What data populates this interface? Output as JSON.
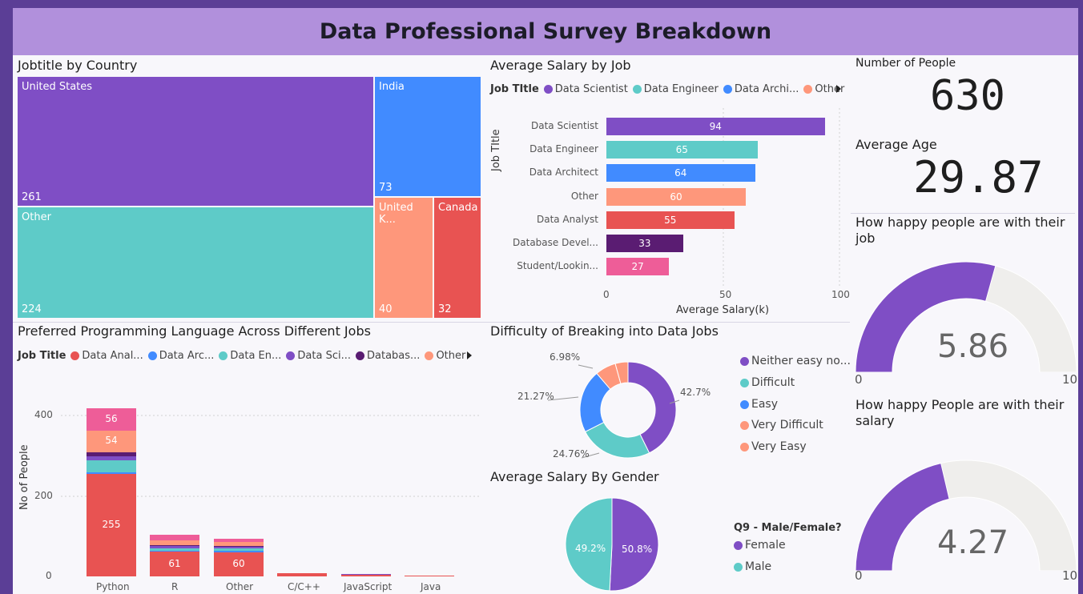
{
  "header": {
    "title": "Data Professional Survey Breakdown"
  },
  "treemap": {
    "title": "Jobtitle by Country",
    "cells": [
      {
        "name": "United States",
        "value": "261",
        "color": "#7f4ec5"
      },
      {
        "name": "India",
        "value": "73",
        "color": "#418bff"
      },
      {
        "name": "Other",
        "value": "224",
        "color": "#5ecbc8"
      },
      {
        "name": "United K...",
        "value": "40",
        "color": "#fe977b"
      },
      {
        "name": "Canada",
        "value": "32",
        "color": "#e85352"
      }
    ]
  },
  "salary_by_job": {
    "title": "Average Salary by Job",
    "legend_title": "Job TItle",
    "legend": [
      {
        "label": "Data Scientist",
        "color": "#7f4ec5"
      },
      {
        "label": "Data Engineer",
        "color": "#5ecbc8"
      },
      {
        "label": "Data Archi...",
        "color": "#418bff"
      },
      {
        "label": "Other",
        "color": "#fe977b"
      }
    ],
    "y_axis_title": "Job TItle",
    "x_axis_title": "Average Salary(k)",
    "x_ticks": [
      "0",
      "50",
      "100"
    ],
    "bars": [
      {
        "label": "Data Scientist",
        "value": "94",
        "color": "#7f4ec5"
      },
      {
        "label": "Data Engineer",
        "value": "65",
        "color": "#5ecbc8"
      },
      {
        "label": "Data Architect",
        "value": "64",
        "color": "#418bff"
      },
      {
        "label": "Other",
        "value": "60",
        "color": "#fe977b"
      },
      {
        "label": "Data Analyst",
        "value": "55",
        "color": "#e85352"
      },
      {
        "label": "Database Devel...",
        "value": "33",
        "color": "#5a1c72"
      },
      {
        "label": "Student/Lookin...",
        "value": "27",
        "color": "#ee5d98"
      }
    ]
  },
  "kpi": {
    "people_label": "Number of People",
    "people_value": "630",
    "age_label": "Average Age",
    "age_value": "29.87"
  },
  "gauge_job": {
    "title": "How happy people are with their job",
    "value": "5.86",
    "min": "0",
    "max": "10"
  },
  "gauge_salary": {
    "title": "How happy People are with their salary",
    "value": "4.27",
    "min": "0",
    "max": "10"
  },
  "languages": {
    "title": "Preferred Programming Language Across Different Jobs",
    "legend_title": "Job Title",
    "legend": [
      {
        "label": "Data Anal...",
        "color": "#e85352"
      },
      {
        "label": "Data Arc...",
        "color": "#418bff"
      },
      {
        "label": "Data En...",
        "color": "#5ecbc8"
      },
      {
        "label": "Data Sci...",
        "color": "#7f4ec5"
      },
      {
        "label": "Databas...",
        "color": "#5a1c72"
      },
      {
        "label": "Other",
        "color": "#fe977b"
      }
    ],
    "y_axis_title": "No of People",
    "y_ticks": [
      "400",
      "200",
      "0"
    ],
    "categories": [
      "Python",
      "R",
      "Other",
      "C/C++",
      "JavaScript",
      "Java"
    ],
    "python_labels": [
      "56",
      "54",
      "255"
    ],
    "r_label": "61",
    "other_label": "60"
  },
  "difficulty": {
    "title": "Difficulty of Breaking into Data Jobs",
    "slices": [
      {
        "label": "Neither easy no...",
        "pct": "42.7%",
        "color": "#7f4ec5"
      },
      {
        "label": "Difficult",
        "pct": "24.76%",
        "color": "#5ecbc8"
      },
      {
        "label": "Easy",
        "pct": "21.27%",
        "color": "#418bff"
      },
      {
        "label": "Very Difficult",
        "pct": "6.98%",
        "color": "#fe977b"
      },
      {
        "label": "Very Easy",
        "pct": "",
        "color": "#fe977b"
      }
    ]
  },
  "gender": {
    "title": "Average Salary By Gender",
    "legend_title": "Q9 - Male/Female?",
    "slices": [
      {
        "label": "Female",
        "pct": "50.8%",
        "color": "#7f4ec5"
      },
      {
        "label": "Male",
        "pct": "49.2%",
        "color": "#5ecbc8"
      }
    ]
  },
  "chart_data": [
    {
      "type": "treemap",
      "title": "Jobtitle by Country",
      "categories": [
        "United States",
        "India",
        "Other",
        "United K...",
        "Canada"
      ],
      "values": [
        261,
        73,
        224,
        40,
        32
      ]
    },
    {
      "type": "bar",
      "title": "Average Salary by Job",
      "categories": [
        "Data Scientist",
        "Data Engineer",
        "Data Architect",
        "Other",
        "Data Analyst",
        "Database Devel...",
        "Student/Lookin..."
      ],
      "values": [
        94,
        65,
        64,
        60,
        55,
        33,
        27
      ],
      "xlabel": "Average Salary(k)",
      "ylabel": "Job TItle",
      "xlim": [
        0,
        100
      ]
    },
    {
      "type": "bar",
      "title": "Preferred Programming Language Across Different Jobs",
      "categories": [
        "Python",
        "R",
        "Other",
        "C/C++",
        "JavaScript",
        "Java"
      ],
      "ylabel": "No of People",
      "ylim": [
        0,
        420
      ],
      "series": [
        {
          "name": "Data Anal...",
          "values": [
            255,
            61,
            60,
            8,
            4,
            2
          ]
        },
        {
          "name": "Data Arc...",
          "values": [
            3,
            3,
            3,
            0,
            0,
            0
          ]
        },
        {
          "name": "Data En...",
          "values": [
            30,
            6,
            6,
            0,
            0,
            0
          ]
        },
        {
          "name": "Data Sci...",
          "values": [
            10,
            5,
            4,
            0,
            2,
            0
          ]
        },
        {
          "name": "Databas...",
          "values": [
            10,
            3,
            3,
            0,
            0,
            0
          ]
        },
        {
          "name": "Other",
          "values": [
            54,
            12,
            10,
            0,
            0,
            0
          ]
        },
        {
          "values": [
            56,
            13,
            8,
            0,
            0,
            0
          ]
        }
      ]
    },
    {
      "type": "pie",
      "title": "Difficulty of Breaking into Data Jobs",
      "categories": [
        "Neither easy no...",
        "Difficult",
        "Easy",
        "Very Difficult",
        "Very Easy"
      ],
      "values": [
        42.7,
        24.76,
        21.27,
        6.98,
        4.29
      ]
    },
    {
      "type": "pie",
      "title": "Average Salary By Gender",
      "categories": [
        "Female",
        "Male"
      ],
      "values": [
        50.8,
        49.2
      ]
    }
  ]
}
